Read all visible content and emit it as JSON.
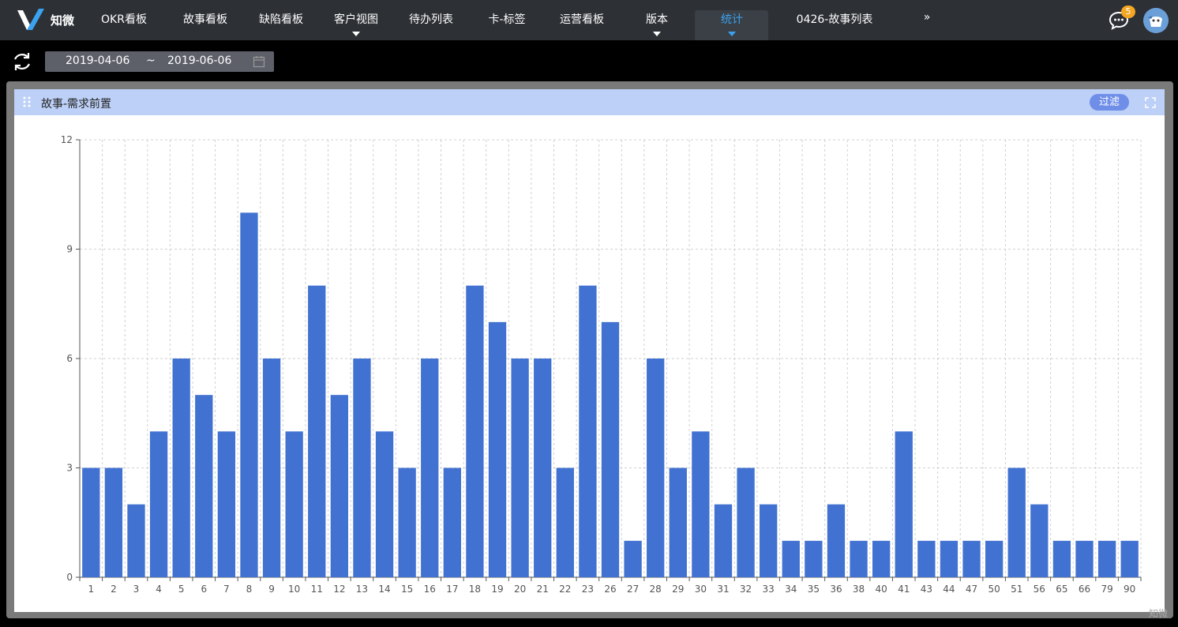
{
  "app": {
    "logo_text": "知微",
    "watermark": "知微"
  },
  "nav": {
    "items": [
      {
        "label": "OKR看板",
        "has_caret": false,
        "active": false
      },
      {
        "label": "故事看板",
        "has_caret": false,
        "active": false
      },
      {
        "label": "缺陷看板",
        "has_caret": false,
        "active": false
      },
      {
        "label": "客户视图",
        "has_caret": true,
        "active": false
      },
      {
        "label": "待办列表",
        "has_caret": false,
        "active": false
      },
      {
        "label": "卡-标签",
        "has_caret": false,
        "active": false
      },
      {
        "label": "运营看板",
        "has_caret": false,
        "active": false
      },
      {
        "label": "版本",
        "has_caret": true,
        "active": false
      },
      {
        "label": "统计",
        "has_caret": true,
        "active": true
      },
      {
        "label": "0426-故事列表",
        "has_caret": false,
        "active": false
      },
      {
        "label": "»",
        "has_caret": false,
        "active": false
      }
    ],
    "message_badge": "5",
    "active_color": "#3aa2f0"
  },
  "toolbar": {
    "date_start": "2019-04-06",
    "date_separator": "~",
    "date_end": "2019-06-06"
  },
  "panel": {
    "title": "故事-需求前置",
    "filter_label": "过滤",
    "header_color": "#bdd0f7"
  },
  "chart_data": {
    "type": "bar",
    "categories": [
      "1",
      "2",
      "3",
      "4",
      "5",
      "6",
      "7",
      "8",
      "9",
      "10",
      "11",
      "12",
      "13",
      "14",
      "15",
      "16",
      "17",
      "18",
      "19",
      "20",
      "21",
      "22",
      "23",
      "26",
      "27",
      "28",
      "29",
      "30",
      "31",
      "32",
      "33",
      "34",
      "35",
      "36",
      "38",
      "40",
      "41",
      "43",
      "44",
      "47",
      "50",
      "51",
      "56",
      "65",
      "66",
      "79",
      "90"
    ],
    "values": [
      3,
      3,
      2,
      4,
      6,
      5,
      4,
      10,
      6,
      4,
      8,
      5,
      6,
      4,
      3,
      6,
      3,
      8,
      7,
      6,
      6,
      3,
      8,
      7,
      1,
      6,
      3,
      4,
      2,
      3,
      2,
      1,
      1,
      2,
      1,
      1,
      4,
      1,
      1,
      1,
      1,
      3,
      2,
      1,
      1,
      1,
      1
    ],
    "ylim": [
      0,
      12
    ],
    "yticks": [
      0,
      3,
      6,
      9,
      12
    ],
    "grid": true,
    "bar_color": "#4272d1"
  }
}
